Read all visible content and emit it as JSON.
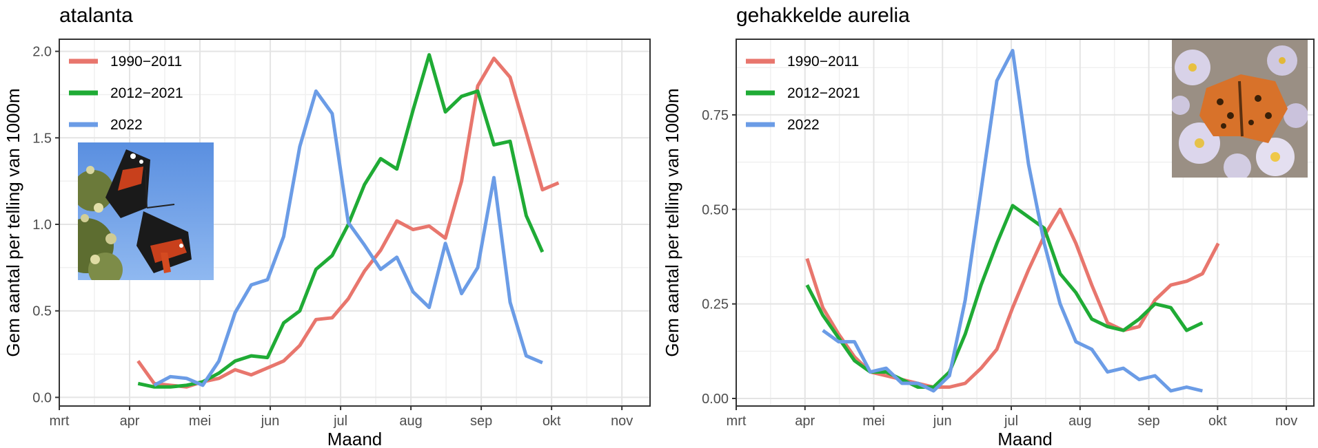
{
  "chart_data": [
    {
      "type": "line",
      "title": "atalanta",
      "xlabel": "Maand",
      "ylabel": "Gem aantal per telling van 1000m",
      "x_ticks": [
        "mrt",
        "apr",
        "mei",
        "jun",
        "jul",
        "aug",
        "sep",
        "okt",
        "nov"
      ],
      "xlim": [
        0,
        8.4
      ],
      "ylim": [
        -0.05,
        2.07
      ],
      "y_ticks": [
        0.0,
        0.5,
        1.0,
        1.5,
        2.0
      ],
      "y_tick_labels": [
        "0.0",
        "0.5",
        "1.0",
        "1.5",
        "2.0"
      ],
      "grid": true,
      "legend_position": "top-left",
      "photo": "red-admiral-butterfly-photo",
      "series": [
        {
          "name": "1990−2011",
          "color": "#e8766d",
          "x": [
            1.12,
            1.35,
            1.58,
            1.81,
            2.04,
            2.27,
            2.5,
            2.73,
            2.96,
            3.19,
            3.42,
            3.65,
            3.88,
            4.11,
            4.34,
            4.57,
            4.8,
            5.03,
            5.26,
            5.49,
            5.72,
            5.95,
            6.18,
            6.41,
            6.64,
            6.87,
            7.1,
            7.33
          ],
          "values": [
            0.21,
            0.08,
            0.07,
            0.06,
            0.09,
            0.11,
            0.16,
            0.13,
            0.17,
            0.21,
            0.3,
            0.45,
            0.46,
            0.57,
            0.73,
            0.85,
            1.02,
            0.97,
            0.99,
            0.92,
            1.25,
            1.8,
            1.96,
            1.85,
            1.53,
            1.2,
            1.24,
            null
          ]
        },
        {
          "name": "2012−2021",
          "color": "#1fab35",
          "x": [
            1.12,
            1.35,
            1.58,
            1.81,
            2.04,
            2.27,
            2.5,
            2.73,
            2.96,
            3.19,
            3.42,
            3.65,
            3.88,
            4.11,
            4.34,
            4.57,
            4.8,
            5.03,
            5.26,
            5.49,
            5.72,
            5.95,
            6.18,
            6.41,
            6.64,
            6.87,
            7.1
          ],
          "values": [
            0.08,
            0.06,
            0.06,
            0.07,
            0.09,
            0.14,
            0.21,
            0.24,
            0.23,
            0.43,
            0.5,
            0.74,
            0.82,
            1.0,
            1.23,
            1.38,
            1.32,
            1.66,
            1.98,
            1.65,
            1.74,
            1.77,
            1.46,
            1.48,
            1.05,
            0.84,
            null
          ]
        },
        {
          "name": "2022",
          "color": "#6b9ce6",
          "x": [
            1.35,
            1.58,
            1.81,
            2.04,
            2.27,
            2.5,
            2.73,
            2.96,
            3.19,
            3.42,
            3.65,
            3.88,
            4.11,
            4.34,
            4.57,
            4.8,
            5.03,
            5.26,
            5.49,
            5.72,
            5.95,
            6.18,
            6.41,
            6.64,
            6.87,
            7.1
          ],
          "values": [
            0.07,
            0.12,
            0.11,
            0.07,
            0.21,
            0.49,
            0.65,
            0.68,
            0.93,
            1.45,
            1.77,
            1.64,
            1.01,
            0.88,
            0.74,
            0.81,
            0.61,
            0.52,
            0.89,
            0.6,
            0.75,
            1.27,
            0.55,
            0.24,
            0.2,
            null
          ]
        }
      ]
    },
    {
      "type": "line",
      "title": "gehakkelde aurelia",
      "xlabel": "Maand",
      "ylabel": "Gem aantal per telling van 1000m",
      "x_ticks": [
        "mrt",
        "apr",
        "mei",
        "jun",
        "jul",
        "aug",
        "sep",
        "okt",
        "nov"
      ],
      "xlim": [
        0,
        8.4
      ],
      "ylim": [
        -0.02,
        0.95
      ],
      "y_ticks": [
        0.0,
        0.25,
        0.5,
        0.75
      ],
      "y_tick_labels": [
        "0.00",
        "0.25",
        "0.50",
        "0.75"
      ],
      "grid": true,
      "legend_position": "top-left",
      "photo": "comma-butterfly-photo",
      "series": [
        {
          "name": "1990−2011",
          "color": "#e8766d",
          "x": [
            1.03,
            1.26,
            1.49,
            1.72,
            1.95,
            2.18,
            2.41,
            2.64,
            2.87,
            3.1,
            3.33,
            3.56,
            3.79,
            4.02,
            4.25,
            4.48,
            4.71,
            4.94,
            5.17,
            5.4,
            5.63,
            5.86,
            6.09,
            6.32,
            6.55,
            6.78,
            7.01
          ],
          "values": [
            0.37,
            0.24,
            0.17,
            0.11,
            0.07,
            0.06,
            0.05,
            0.04,
            0.03,
            0.03,
            0.04,
            0.08,
            0.13,
            0.24,
            0.34,
            0.43,
            0.5,
            0.41,
            0.3,
            0.2,
            0.18,
            0.19,
            0.26,
            0.3,
            0.31,
            0.33,
            0.41
          ]
        },
        {
          "name": "2012−2021",
          "color": "#1fab35",
          "x": [
            1.03,
            1.26,
            1.49,
            1.72,
            1.95,
            2.18,
            2.41,
            2.64,
            2.87,
            3.1,
            3.33,
            3.56,
            3.79,
            4.02,
            4.25,
            4.48,
            4.71,
            4.94,
            5.17,
            5.4,
            5.63,
            5.86,
            6.09,
            6.32,
            6.55,
            6.78,
            7.01
          ],
          "values": [
            0.3,
            0.22,
            0.16,
            0.1,
            0.07,
            0.07,
            0.05,
            0.03,
            0.03,
            0.07,
            0.17,
            0.3,
            0.41,
            0.51,
            0.48,
            0.45,
            0.33,
            0.28,
            0.21,
            0.19,
            0.18,
            0.21,
            0.25,
            0.24,
            0.18,
            0.2,
            null
          ]
        },
        {
          "name": "2022",
          "color": "#6b9ce6",
          "x": [
            1.26,
            1.49,
            1.72,
            1.95,
            2.18,
            2.41,
            2.64,
            2.87,
            3.1,
            3.33,
            3.56,
            3.79,
            4.02,
            4.25,
            4.48,
            4.71,
            4.94,
            5.17,
            5.4,
            5.63,
            5.86,
            6.09,
            6.32,
            6.55,
            6.78,
            7.01
          ],
          "values": [
            0.18,
            0.15,
            0.15,
            0.07,
            0.08,
            0.04,
            0.04,
            0.02,
            0.06,
            0.26,
            0.55,
            0.84,
            0.92,
            0.62,
            0.41,
            0.25,
            0.15,
            0.13,
            0.07,
            0.08,
            0.05,
            0.06,
            0.02,
            0.03,
            0.02,
            null
          ]
        }
      ]
    }
  ]
}
